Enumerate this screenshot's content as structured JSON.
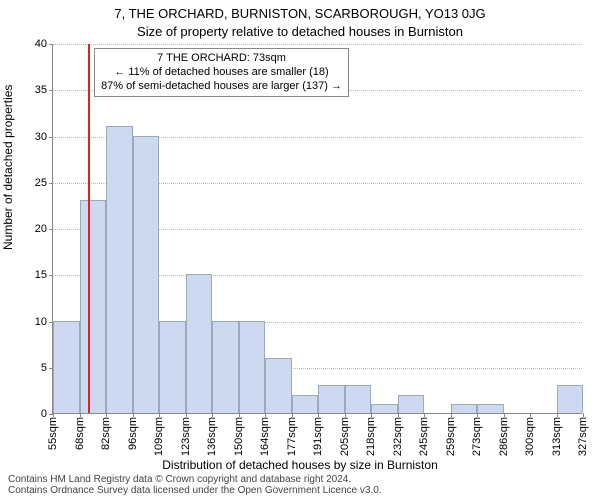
{
  "title": "7, THE ORCHARD, BURNISTON, SCARBOROUGH, YO13 0JG",
  "subtitle": "Size of property relative to detached houses in Burniston",
  "ylabel": "Number of detached properties",
  "xlabel": "Distribution of detached houses by size in Burniston",
  "footer_line1": "Contains HM Land Registry data © Crown copyright and database right 2024.",
  "footer_line2": "Contains Ordnance Survey data licensed under the Open Government Licence v3.0.",
  "chart": {
    "type": "histogram",
    "bar_color": "#cdd9f1",
    "bar_border_color": "#99aabb",
    "grid_color": "#bbbbbb",
    "axis_color": "#888888",
    "marker_color": "#dd2222",
    "background_color": "#ffffff",
    "ylim": [
      0,
      40
    ],
    "ytick_step": 5,
    "yticks": [
      0,
      5,
      10,
      15,
      20,
      25,
      30,
      35,
      40
    ],
    "x_start": 55,
    "x_bin_width": 13.6,
    "x_tick_labels": [
      "55sqm",
      "68sqm",
      "82sqm",
      "96sqm",
      "109sqm",
      "123sqm",
      "136sqm",
      "150sqm",
      "164sqm",
      "177sqm",
      "191sqm",
      "205sqm",
      "218sqm",
      "232sqm",
      "245sqm",
      "259sqm",
      "273sqm",
      "286sqm",
      "300sqm",
      "313sqm",
      "327sqm"
    ],
    "values": [
      10,
      23,
      31,
      30,
      10,
      15,
      10,
      10,
      6,
      2,
      3,
      3,
      1,
      2,
      0,
      1,
      1,
      0,
      0,
      3
    ],
    "marker_x_sqm": 73,
    "infobox": {
      "line1": "7 THE ORCHARD: 73sqm",
      "line2": "← 11% of detached houses are smaller (18)",
      "line3": "87% of semi-detached houses are larger (137) →"
    }
  }
}
